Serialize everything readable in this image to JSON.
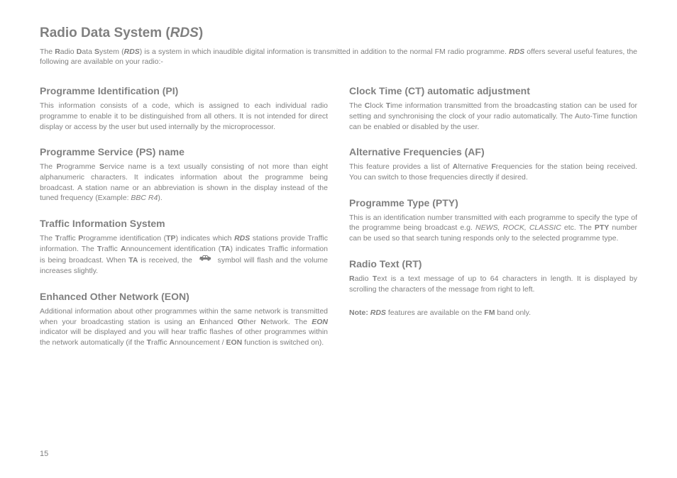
{
  "title_prefix": "Radio Data System (",
  "title_italic": "RDS",
  "title_suffix": ")",
  "intro_html": "The <b>R</b>adio <b>D</b>ata <b>S</b>ystem (<span class='bolditalic'>RDS</span>) is a system in which inaudible digital information is transmitted in addition to the normal FM radio programme.  <span class='bolditalic'>RDS</span> offers several useful features, the following are available on your radio:-",
  "left": [
    {
      "title": "Programme Identification (PI)",
      "body": "This information consists of a code, which is assigned to each individual radio programme to enable it to be distinguished from all others.  It is not intended for direct display or access by the user but used internally by the microprocessor."
    },
    {
      "title": "Programme Service (PS) name",
      "body": "The <b>P</b>rogramme <b>S</b>ervice name is a text usually consisting of not more than eight alphanumeric characters. It indicates information about the programme being broadcast.  A station name or an abbreviation is shown in the display instead of the tuned frequency (Example: <i>BBC R4</i>)."
    },
    {
      "title": "Traffic Information System",
      "body": "The <b>T</b>raffic <b>P</b>rogramme identification (<b>TP</b>) indicates which <span class='bi'>RDS</span> stations provide Traffic information. The <b>T</b>raffic <b>A</b>nnouncement identification (<b>TA</b>) indicates Traffic information is being broadcast.  When <b>TA</b> is received, the {{CAR}} symbol will flash and the volume increases slightly."
    },
    {
      "title": "Enhanced Other Network (EON)",
      "body": "Additional information about other programmes within the same network is transmitted when your broadcasting station is using an <b>E</b>nhanced <b>O</b>ther <b>N</b>etwork.  The <span class='bi'>EON</span> indicator will be displayed and you will hear traffic flashes of other programmes within the network automatically (if the <b>T</b>raffic <b>A</b>nnouncement / <b>EON</b> function is switched on)."
    }
  ],
  "right": [
    {
      "title": "Clock Time (CT) automatic adjustment",
      "body": "The <b>C</b>lock <b>T</b>ime information transmitted from the broadcasting station can be used for setting and synchronising the clock of your radio automatically.  The Auto-Time function can be enabled or disabled by the user."
    },
    {
      "title": "Alternative Frequencies (AF)",
      "body": "This feature provides a list of <b>A</b>lternative <b>F</b>requencies for the station being received. You can switch to those frequencies directly if desired."
    },
    {
      "title": "Programme Type (PTY)",
      "body": "This is an identification number transmitted with each programme to specify the type of the programme being broadcast e.g. <i>NEWS, ROCK, CLASSIC</i> etc. The <b>PTY</b> number can be used so that search tuning responds only to the selected programme type."
    },
    {
      "title": "Radio Text (RT)",
      "body": "<b>R</b>adio <b>T</b>ext is a text message of up to 64 characters in length.  It is displayed by scrolling the characters of the message from right to left."
    }
  ],
  "note_html": "<b>Note:</b> <span class='bi'>RDS</span> features are available on the <b>FM</b> band only.",
  "page_number": "15",
  "colors": {
    "text": "#808080",
    "background": "#ffffff"
  }
}
